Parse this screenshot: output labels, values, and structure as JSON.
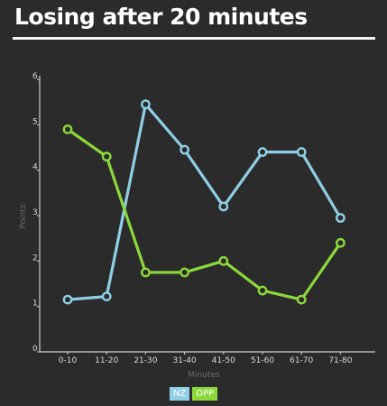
{
  "title": "Losing after 20 minutes",
  "colors": {
    "background": "#2b2b2b",
    "axis": "#cfcfcf",
    "nz": "#8fcfe6",
    "opp": "#8cd83a"
  },
  "chart_data": {
    "type": "line",
    "title": "Losing after 20 minutes",
    "xlabel": "Minutes",
    "ylabel": "Points",
    "ylim": [
      0,
      6
    ],
    "yticks": [
      0,
      1,
      2,
      3,
      4,
      5,
      6
    ],
    "categories": [
      "0-10",
      "11-20",
      "21-30",
      "31-40",
      "41-50",
      "51-60",
      "61-70",
      "71-80"
    ],
    "series": [
      {
        "name": "NZ",
        "color": "#8fcfe6",
        "values": [
          1.15,
          1.22,
          5.45,
          4.45,
          3.2,
          4.4,
          4.4,
          2.95
        ]
      },
      {
        "name": "OPP",
        "color": "#8cd83a",
        "values": [
          4.9,
          4.3,
          1.75,
          1.75,
          2.0,
          1.35,
          1.15,
          2.4
        ]
      }
    ],
    "grid": false,
    "legend": "bottom-center"
  }
}
